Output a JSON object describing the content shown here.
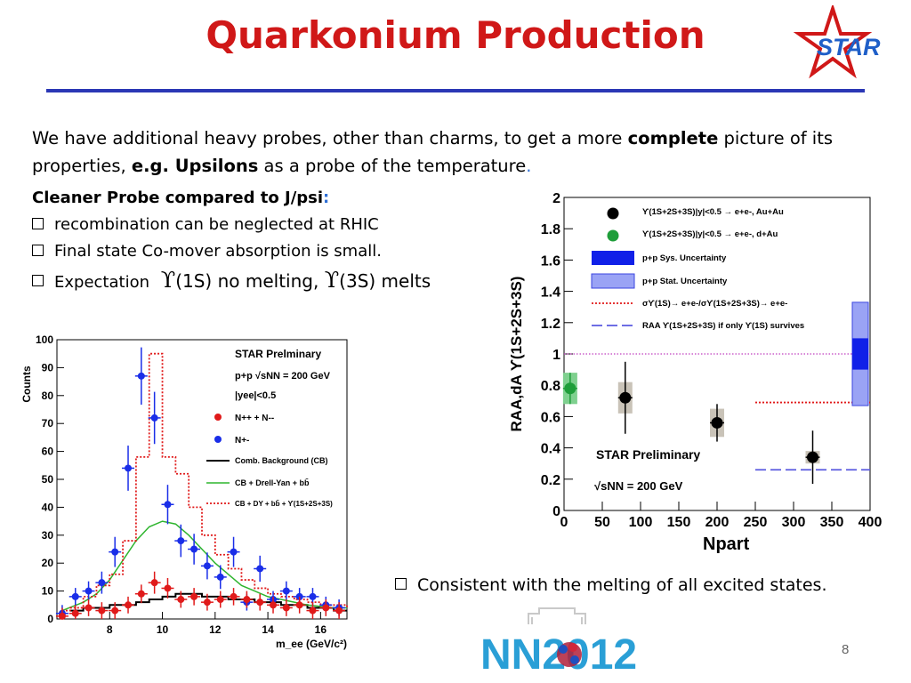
{
  "slide": {
    "title": "Quarkonium Production",
    "logo_text": "STAR",
    "intro": {
      "part1": "We have additional heavy probes, other than charms, to get a more ",
      "bold1": "complete",
      "part2": " picture of its properties, ",
      "bold2": "e.g. Upsilons",
      "part3": " as a probe of the temperature",
      "period": "."
    },
    "heading": "Cleaner Probe compared to J/psi",
    "heading_colon": ":",
    "bullets": [
      "recombination can be neglected at RHIC",
      "Final state Co-mover absorption is small."
    ],
    "expectation": {
      "label": "Expectation",
      "upsilon": "ϒ",
      "state1": "(1S) no melting,",
      "state2": "(3S) melts"
    },
    "bottom_bullet": "Consistent with the melting of all excited states.",
    "conference_logo": "NN2012",
    "page_number": "8",
    "accent_color": "#d01818",
    "rule_color": "#2b37b5"
  },
  "chart_data": [
    {
      "type": "scatter",
      "title": "",
      "xlabel": "m_ee (GeV/c²)",
      "ylabel": "Counts",
      "xlim": [
        6,
        17
      ],
      "ylim": [
        0,
        100
      ],
      "x_ticks": [
        8,
        10,
        12,
        14,
        16
      ],
      "y_ticks": [
        0,
        10,
        20,
        30,
        40,
        50,
        60,
        70,
        80,
        90,
        100
      ],
      "legend_texts": {
        "prelim": "STAR Prelminary",
        "energy": "p+p √sNN = 200 GeV",
        "cut": "|yee|<0.5",
        "like": "N++ + N--",
        "unlike": "N+-",
        "cb": "Comb. Background (CB)",
        "dy": "CB + Drell-Yan + bb̄",
        "tot": "CB + DY + bb̄ + ϒ(1S+2S+3S)"
      },
      "series": [
        {
          "name": "N+-",
          "color": "#1a2ee8",
          "x": [
            6.2,
            6.7,
            7.2,
            7.7,
            8.2,
            8.7,
            9.2,
            9.7,
            10.2,
            10.7,
            11.2,
            11.7,
            12.2,
            12.7,
            13.2,
            13.7,
            14.2,
            14.7,
            15.2,
            15.7,
            16.2,
            16.7
          ],
          "y": [
            2,
            8,
            10,
            13,
            24,
            54,
            87,
            72,
            41,
            28,
            25,
            19,
            15,
            24,
            6,
            18,
            7,
            10,
            8,
            8,
            5,
            4
          ]
        },
        {
          "name": "N++ + N--",
          "color": "#e01a1a",
          "x": [
            6.2,
            6.7,
            7.2,
            7.7,
            8.2,
            8.7,
            9.2,
            9.7,
            10.2,
            10.7,
            11.2,
            11.7,
            12.2,
            12.7,
            13.2,
            13.7,
            14.2,
            14.7,
            15.2,
            15.7,
            16.2,
            16.7
          ],
          "y": [
            1,
            2,
            4,
            3,
            3,
            5,
            9,
            13,
            11,
            7,
            8,
            6,
            7,
            8,
            7,
            6,
            5,
            4,
            5,
            3,
            4,
            3
          ]
        },
        {
          "name": "Comb. Background (CB)",
          "color": "#000000",
          "style": "histogram",
          "x": [
            6.5,
            7,
            7.5,
            8,
            8.5,
            9,
            9.5,
            10,
            10.5,
            11,
            11.5,
            12,
            12.5,
            13,
            13.5,
            14,
            14.5,
            15,
            15.5,
            16,
            16.5,
            17
          ],
          "y": [
            3,
            4,
            4,
            5,
            5,
            6,
            7,
            8,
            9,
            9,
            8,
            8,
            7,
            7,
            6,
            6,
            5,
            5,
            4,
            4,
            3,
            3
          ]
        },
        {
          "name": "CB + Drell-Yan + bb̄",
          "color": "#2fb52f",
          "style": "line",
          "x": [
            6.2,
            7,
            7.5,
            8,
            8.5,
            9,
            9.5,
            10,
            10.5,
            11,
            11.5,
            12,
            12.5,
            13,
            13.5,
            14,
            14.5,
            15,
            15.5,
            16,
            16.5,
            17
          ],
          "y": [
            3,
            6,
            9,
            14,
            21,
            28,
            33,
            35,
            34,
            30,
            25,
            20,
            16,
            12,
            10,
            8,
            7,
            6,
            5,
            4.5,
            4,
            4
          ]
        },
        {
          "name": "CB + DY + bb̄ + ϒ(1S+2S+3S)",
          "color": "#e01a1a",
          "style": "dotted-histogram",
          "x": [
            6.2,
            6.5,
            7,
            7.5,
            8,
            8.5,
            9,
            9.5,
            10,
            10.5,
            11,
            11.5,
            12,
            12.5,
            13,
            13.5,
            14,
            14.5,
            15,
            15.5,
            16,
            16.5,
            17
          ],
          "y": [
            3,
            4,
            8,
            12,
            16,
            28,
            58,
            95,
            58,
            52,
            40,
            30,
            23,
            18,
            14,
            11,
            9,
            8,
            7,
            6,
            5,
            5,
            4
          ]
        }
      ]
    },
    {
      "type": "scatter",
      "title": "",
      "xlabel": "Npart",
      "ylabel": "RAA,dA ϒ(1S+2S+3S)",
      "xlim": [
        0,
        400
      ],
      "ylim": [
        0,
        2
      ],
      "x_ticks": [
        0,
        50,
        100,
        150,
        200,
        250,
        300,
        350,
        400
      ],
      "y_ticks": [
        0,
        0.2,
        0.4,
        0.6,
        0.8,
        1,
        1.2,
        1.4,
        1.6,
        1.8,
        2
      ],
      "annotation": "STAR Preliminary",
      "energy_label": "√sNN = 200 GeV",
      "legend_texts": {
        "auau": "ϒ(1S+2S+3S)|y|<0.5 → e+e-, Au+Au",
        "dau": "ϒ(1S+2S+3S)|y|<0.5 → e+e-, d+Au",
        "sys": "p+p Sys. Uncertainty",
        "stat": "p+p Stat. Uncertainty",
        "ratio": "σϒ(1S)→ e+e-/σϒ(1S+2S+3S)→ e+e-",
        "survive": "RAA ϒ(1S+2S+3S) if only ϒ(1S) survives"
      },
      "series": [
        {
          "name": "Au+Au",
          "color": "#000000",
          "x": [
            80,
            200,
            325
          ],
          "y": [
            0.72,
            0.56,
            0.34
          ],
          "err": [
            0.23,
            0.12,
            0.17
          ],
          "sys": [
            0.1,
            0.09,
            0.04
          ]
        },
        {
          "name": "d+Au",
          "color": "#1f9e3a",
          "x": [
            8
          ],
          "y": [
            0.78
          ],
          "err": [
            0.1
          ],
          "sys": [
            0.1
          ]
        }
      ],
      "reference_lines": {
        "unity": 1.0,
        "ratio_1s": 0.69,
        "only_1s_survives": 0.26
      },
      "pp_uncertainty": {
        "center": 1.0,
        "sys_halfwidth": 0.1,
        "stat_halfwidth": 0.33
      }
    }
  ]
}
